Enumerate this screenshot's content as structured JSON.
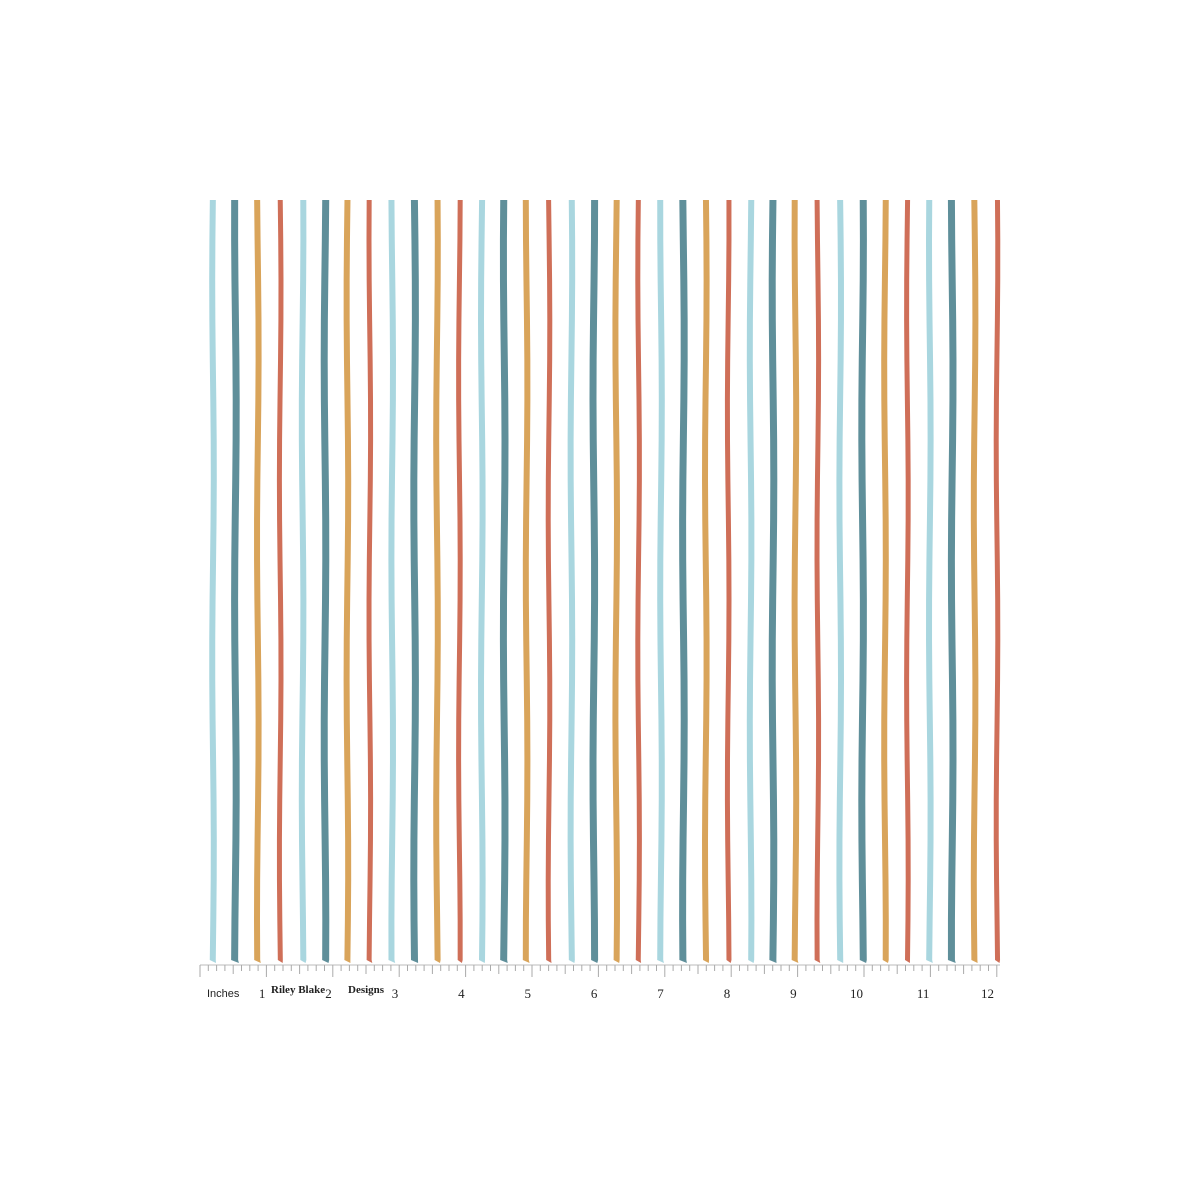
{
  "ruler": {
    "unit": "Inches",
    "brand": [
      "Riley Blake",
      "Designs"
    ],
    "numbers": [
      1,
      2,
      3,
      4,
      5,
      6,
      7,
      8,
      9,
      10,
      11,
      12
    ]
  }
}
